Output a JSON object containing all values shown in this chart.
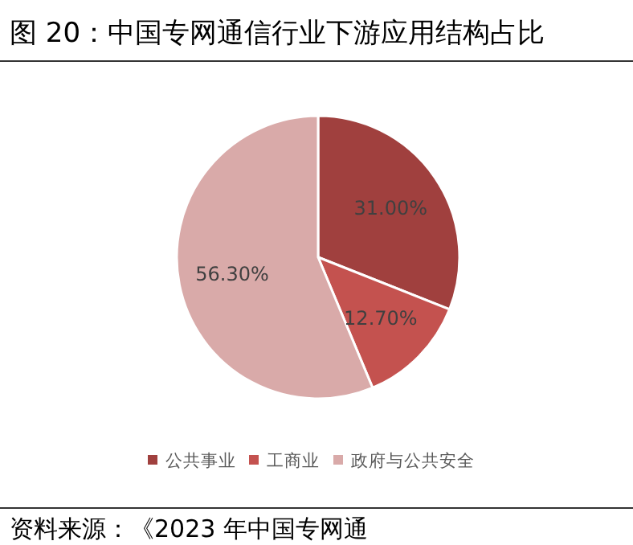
{
  "chart_data": {
    "type": "pie",
    "title": "图 20：中国专网通信行业下游应用结构占比",
    "categories": [
      "公共事业",
      "工商业",
      "政府与公共安全"
    ],
    "values": [
      31.0,
      12.7,
      56.3
    ],
    "value_labels": [
      "31.00%",
      "12.70%",
      "56.30%"
    ],
    "colors": [
      "#a0403e",
      "#c4524f",
      "#d9aaa9"
    ],
    "legend": "bottom",
    "annotations": [
      "资料来源：《2023 年中国专网通"
    ]
  }
}
